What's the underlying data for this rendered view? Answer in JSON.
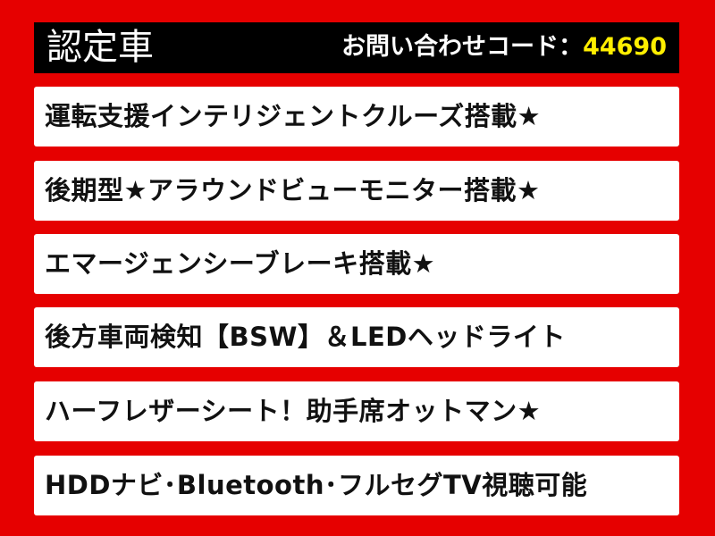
{
  "header": {
    "title": "認定車",
    "inquiry_label": "お問い合わせコード：",
    "inquiry_code": "44690"
  },
  "features": [
    "運転支援インテリジェントクルーズ搭載★",
    "後期型★アラウンドビューモニター搭載★",
    "エマージェンシーブレーキ搭載★",
    "後方車両検知【BSW】＆LEDヘッドライト",
    "ハーフレザーシート！助手席オットマン★",
    "HDDナビ･Bluetooth･フルセグTV視聴可能"
  ],
  "colors": {
    "background": "#e60000",
    "header": "#000000",
    "code": "#ffee00"
  }
}
